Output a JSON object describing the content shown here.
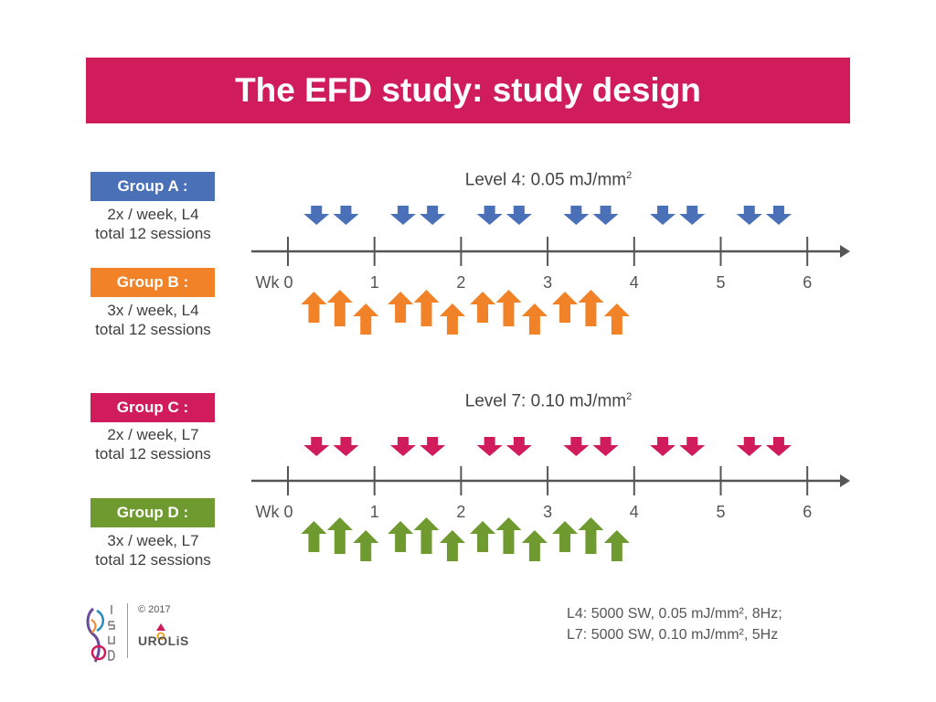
{
  "title": "The EFD study: study design",
  "colors": {
    "title_bg": "#d01c5b",
    "group_a": "#4a70b8",
    "group_b": "#f28228",
    "group_c": "#d01c5b",
    "group_d": "#6e9a2f",
    "axis": "#555555"
  },
  "groups": [
    {
      "label": "Group A :",
      "line1": "2x / week, L4",
      "line2": "total 12 sessions"
    },
    {
      "label": "Group B :",
      "line1": "3x / week, L4",
      "line2": "total 12 sessions"
    },
    {
      "label": "Group C :",
      "line1": "2x / week, L7",
      "line2": "total 12 sessions"
    },
    {
      "label": "Group D :",
      "line1": "3x / week, L7",
      "line2": "total 12 sessions"
    }
  ],
  "levels": [
    {
      "text": "Level 4: 0.05 mJ/mm",
      "sup": "2"
    },
    {
      "text": "Level 7: 0.10 mJ/mm",
      "sup": "2"
    }
  ],
  "axis_ticks": [
    "Wk 0",
    "1",
    "2",
    "3",
    "4",
    "5",
    "6"
  ],
  "sessions": {
    "twice_weekly": [
      0.33,
      0.67,
      1.33,
      1.67,
      2.33,
      2.67,
      3.33,
      3.67,
      4.33,
      4.67,
      5.33,
      5.67
    ],
    "thrice_weekly": [
      0.3,
      0.6,
      0.9,
      1.3,
      1.6,
      1.9,
      2.25,
      2.55,
      2.85,
      3.2,
      3.5,
      3.8
    ]
  },
  "footer": {
    "l4": "L4: 5000 SW, 0.05 mJ/mm², 8Hz;",
    "l7": "L7: 5000 SW, 0.10 mJ/mm², 5Hz",
    "copyright": "© 2017",
    "logo_left": "ISUD",
    "logo_right": "UROLiS"
  }
}
